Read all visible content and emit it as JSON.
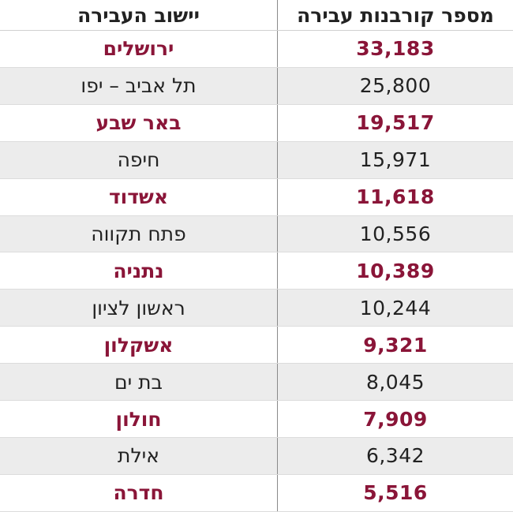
{
  "header": {
    "city_label": "יישוב העבירה",
    "count_label": "מספר קורבנות עבירה"
  },
  "colors": {
    "accent_row_text": "#8a1538",
    "plain_row_text": "#222222",
    "alt_row_background": "#ececec"
  },
  "rows": [
    {
      "city": "ירושלים",
      "count": "33,183"
    },
    {
      "city": "תל אביב – יפו",
      "count": "25,800"
    },
    {
      "city": "באר שבע",
      "count": "19,517"
    },
    {
      "city": "חיפה",
      "count": "15,971"
    },
    {
      "city": "אשדוד",
      "count": "11,618"
    },
    {
      "city": "פתח תקווה",
      "count": "10,556"
    },
    {
      "city": "נתניה",
      "count": "10,389"
    },
    {
      "city": "ראשון לציון",
      "count": "10,244"
    },
    {
      "city": "אשקלון",
      "count": "9,321"
    },
    {
      "city": "בת ים",
      "count": "8,045"
    },
    {
      "city": "חולון",
      "count": "7,909"
    },
    {
      "city": "אילת",
      "count": "6,342"
    },
    {
      "city": "חדרה",
      "count": "5,516"
    }
  ]
}
